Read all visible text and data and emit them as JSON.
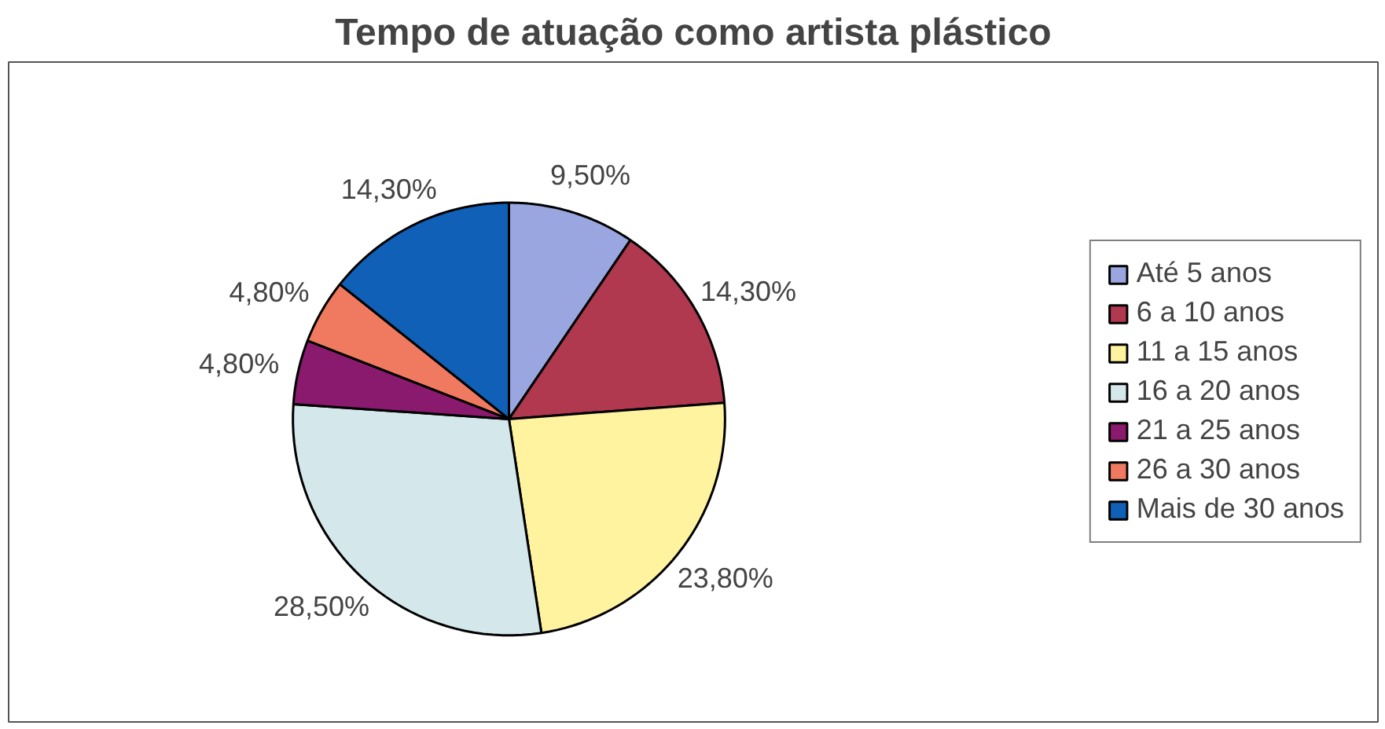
{
  "chart_data": {
    "type": "pie",
    "title": "Tempo de atuação como artista plástico",
    "categories": [
      "Até 5 anos",
      "6 a 10 anos",
      "11 a 15 anos",
      "16 a 20 anos",
      "21 a 25 anos",
      "26 a 30 anos",
      "Mais de 30 anos"
    ],
    "values": [
      9.5,
      14.3,
      23.8,
      28.5,
      4.8,
      4.8,
      14.3
    ],
    "value_labels": [
      "9,50%",
      "14,30%",
      "23,80%",
      "28,50%",
      "4,80%",
      "4,80%",
      "14,30%"
    ],
    "colors": [
      "#9aa6e0",
      "#b0384f",
      "#fff3a0",
      "#d4e8ec",
      "#8a1a6e",
      "#f07a60",
      "#1060b8"
    ],
    "legend": "right"
  }
}
